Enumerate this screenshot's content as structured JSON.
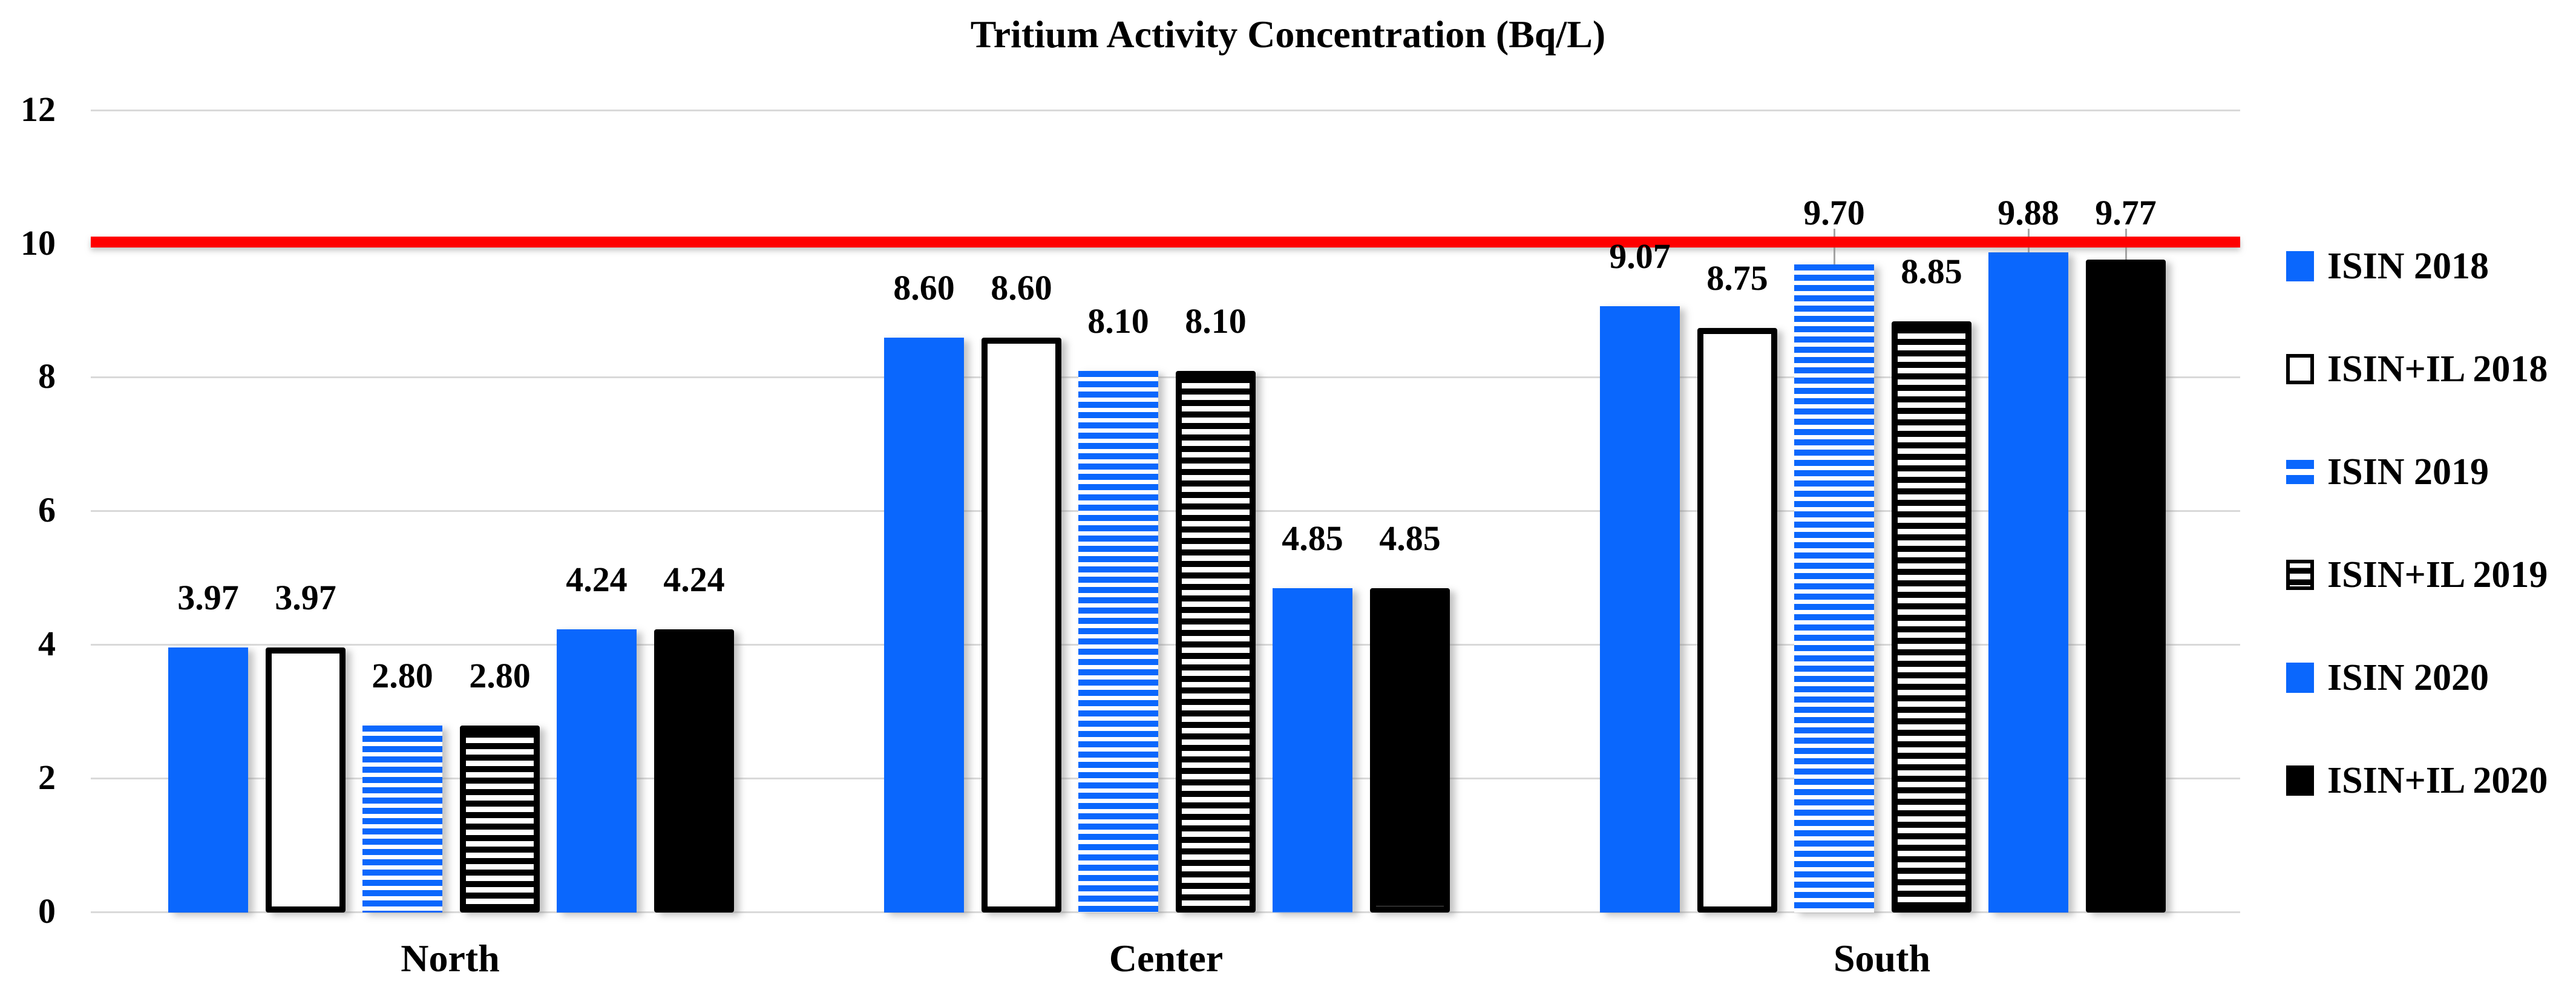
{
  "title": "Tritium Activity Concentration (Bq/L)",
  "chart_data": {
    "type": "bar",
    "title": "Tritium Activity Concentration (Bq/L)",
    "categories": [
      "North",
      "Center",
      "South"
    ],
    "series": [
      {
        "name": "ISIN 2018",
        "pattern": "solid-blue",
        "values": [
          3.97,
          8.6,
          9.07
        ],
        "labels": [
          "3.97",
          "8.60",
          "9.07"
        ]
      },
      {
        "name": "ISIN+IL 2018",
        "pattern": "white-outline",
        "values": [
          3.97,
          8.6,
          8.75
        ],
        "labels": [
          "3.97",
          "8.60",
          "8.75"
        ]
      },
      {
        "name": "ISIN 2019",
        "pattern": "blue-stripes",
        "values": [
          2.8,
          8.1,
          9.7
        ],
        "labels": [
          "2.80",
          "8.10",
          "9.70"
        ]
      },
      {
        "name": "ISIN+IL 2019",
        "pattern": "black-stripes",
        "values": [
          2.8,
          8.1,
          8.85
        ],
        "labels": [
          "2.80",
          "8.10",
          "8.85"
        ]
      },
      {
        "name": "ISIN 2020",
        "pattern": "blue-diamonds",
        "values": [
          4.24,
          4.85,
          9.88
        ],
        "labels": [
          "4.24",
          "4.85",
          "9.88"
        ]
      },
      {
        "name": "ISIN+IL 2020",
        "pattern": "black-diamonds",
        "values": [
          4.24,
          4.85,
          9.77
        ],
        "labels": [
          "4.24",
          "4.85",
          "9.77"
        ]
      }
    ],
    "y_axis": {
      "min": 0,
      "max": 12,
      "tick_interval": 2,
      "tick_labels": [
        "0",
        "2",
        "4",
        "6",
        "8",
        "10",
        "12"
      ]
    },
    "reference_line": {
      "value": 10,
      "color": "#FF0000"
    },
    "legend_position": "right",
    "grid": true
  },
  "colors": {
    "blue": "#0A67FD",
    "black": "#000000",
    "red": "#FF0000",
    "gridline": "#D9D9D9",
    "leader_line": "#A6A6A6",
    "background": "#FFFFFF"
  }
}
